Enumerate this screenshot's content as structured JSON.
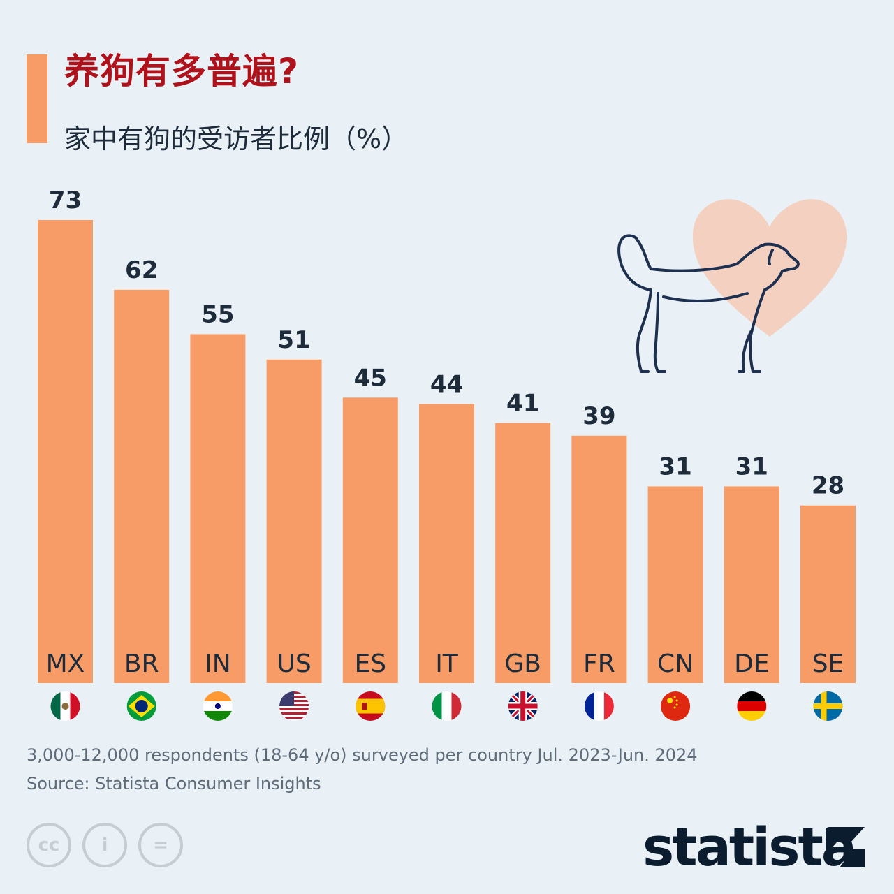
{
  "header": {
    "title": "养狗有多普遍?",
    "subtitle": "家中有狗的受访者比例（%）"
  },
  "chart_data": {
    "type": "bar",
    "title": "养狗有多普遍?",
    "subtitle": "家中有狗的受访者比例（%）",
    "categories": [
      "MX",
      "BR",
      "IN",
      "US",
      "ES",
      "IT",
      "GB",
      "FR",
      "CN",
      "DE",
      "SE"
    ],
    "values": [
      73,
      62,
      55,
      51,
      45,
      44,
      41,
      39,
      31,
      31,
      28
    ],
    "ylim": [
      0,
      73
    ],
    "grid": false,
    "legend": "none",
    "bar_color": "#f79c66"
  },
  "footer": {
    "note": "3,000-12,000 respondents (18-64 y/o) surveyed per country Jul. 2023-Jun. 2024",
    "source": "Source: Statista Consumer Insights",
    "logo": "statista"
  },
  "icons": {
    "flags": [
      "mexico-flag-icon",
      "brazil-flag-icon",
      "india-flag-icon",
      "usa-flag-icon",
      "spain-flag-icon",
      "italy-flag-icon",
      "uk-flag-icon",
      "france-flag-icon",
      "china-flag-icon",
      "germany-flag-icon",
      "sweden-flag-icon"
    ],
    "illustration": "dog-heart-icon",
    "license": [
      "cc-icon",
      "attribution-icon",
      "no-derivatives-icon"
    ]
  },
  "colors": {
    "background": "#e9f0f6",
    "accent": "#f79c66",
    "title": "#b0121b",
    "label": "#1d2b3a"
  }
}
